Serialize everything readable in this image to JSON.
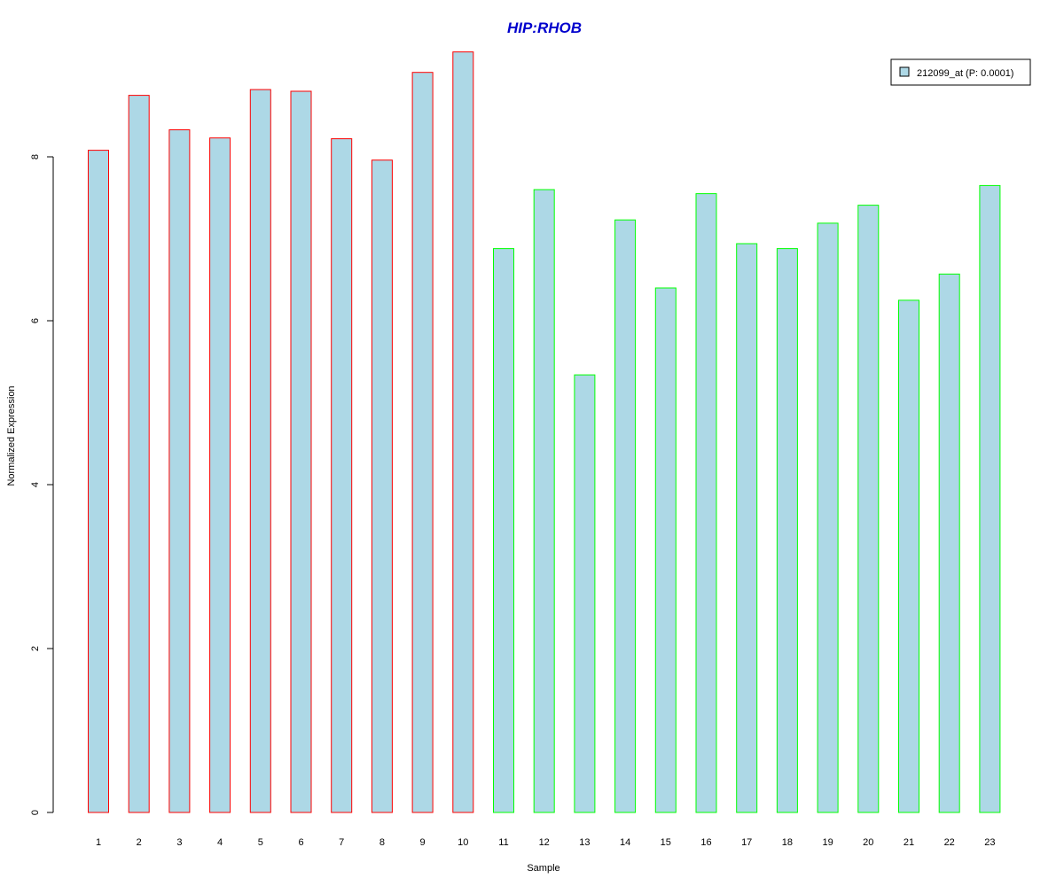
{
  "chart_data": {
    "type": "bar",
    "title": "HIP:RHOB",
    "xlabel": "Sample",
    "ylabel": "Normalized Expression",
    "categories": [
      "1",
      "2",
      "3",
      "4",
      "5",
      "6",
      "7",
      "8",
      "9",
      "10",
      "11",
      "12",
      "13",
      "14",
      "15",
      "16",
      "17",
      "18",
      "19",
      "20",
      "21",
      "22",
      "23"
    ],
    "series": [
      {
        "name": "212099_at (P: 0.0001)",
        "values": [
          8.08,
          8.75,
          8.33,
          8.23,
          8.82,
          8.8,
          8.22,
          7.96,
          9.03,
          9.28,
          6.88,
          7.6,
          5.34,
          7.23,
          6.4,
          7.55,
          6.94,
          6.88,
          7.19,
          7.41,
          6.25,
          6.57,
          7.65
        ]
      }
    ],
    "group_border_colors": [
      "#ff0000",
      "#ff0000",
      "#ff0000",
      "#ff0000",
      "#ff0000",
      "#ff0000",
      "#ff0000",
      "#ff0000",
      "#ff0000",
      "#ff0000",
      "#00ff00",
      "#00ff00",
      "#00ff00",
      "#00ff00",
      "#00ff00",
      "#00ff00",
      "#00ff00",
      "#00ff00",
      "#00ff00",
      "#00ff00",
      "#00ff00",
      "#00ff00",
      "#00ff00"
    ],
    "yticks": [
      0,
      2,
      4,
      6,
      8
    ],
    "ylim": [
      0,
      9.5
    ],
    "grid": false,
    "legend_position": "top-right"
  },
  "colors": {
    "bar_fill": "#add8e6",
    "title": "#0000cd",
    "axis": "#000000"
  }
}
